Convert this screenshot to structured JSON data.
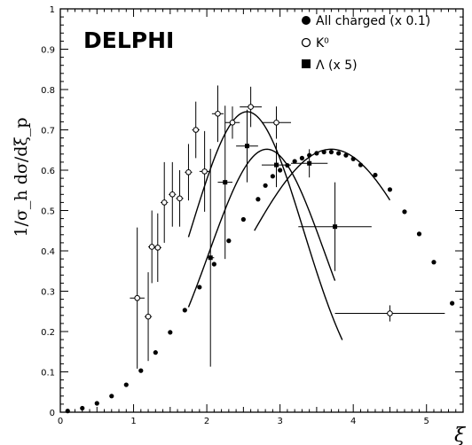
{
  "chart_data": {
    "type": "scatter",
    "experiment_label": "DELPHI",
    "ylabel": "1/σ_h dσ/dξ_p",
    "xlabel": "ξ_p",
    "xlim": [
      0,
      5.5
    ],
    "ylim": [
      0,
      1
    ],
    "x_ticks": [
      "0",
      "1",
      "2",
      "3",
      "4",
      "5"
    ],
    "y_ticks": [
      "0",
      "0.1",
      "0.2",
      "0.3",
      "0.4",
      "0.5",
      "0.6",
      "0.7",
      "0.8",
      "0.9",
      "1"
    ],
    "legend_position": "top-right",
    "series": [
      {
        "name": "All charged (x 0.1)",
        "marker": "filled-circle",
        "points": [
          {
            "x": 0.1,
            "y": 0.003
          },
          {
            "x": 0.3,
            "y": 0.01
          },
          {
            "x": 0.5,
            "y": 0.022
          },
          {
            "x": 0.7,
            "y": 0.04
          },
          {
            "x": 0.9,
            "y": 0.068
          },
          {
            "x": 1.1,
            "y": 0.103
          },
          {
            "x": 1.3,
            "y": 0.148
          },
          {
            "x": 1.5,
            "y": 0.198
          },
          {
            "x": 1.7,
            "y": 0.253
          },
          {
            "x": 1.9,
            "y": 0.31
          },
          {
            "x": 2.1,
            "y": 0.367
          },
          {
            "x": 2.3,
            "y": 0.425
          },
          {
            "x": 2.5,
            "y": 0.478
          },
          {
            "x": 2.7,
            "y": 0.528
          },
          {
            "x": 2.8,
            "y": 0.562
          },
          {
            "x": 2.9,
            "y": 0.585
          },
          {
            "x": 3.0,
            "y": 0.6
          },
          {
            "x": 3.1,
            "y": 0.612
          },
          {
            "x": 3.2,
            "y": 0.622
          },
          {
            "x": 3.3,
            "y": 0.63
          },
          {
            "x": 3.4,
            "y": 0.637
          },
          {
            "x": 3.5,
            "y": 0.642
          },
          {
            "x": 3.6,
            "y": 0.645
          },
          {
            "x": 3.7,
            "y": 0.645
          },
          {
            "x": 3.8,
            "y": 0.642
          },
          {
            "x": 3.9,
            "y": 0.637
          },
          {
            "x": 4.0,
            "y": 0.628
          },
          {
            "x": 4.1,
            "y": 0.613
          },
          {
            "x": 4.3,
            "y": 0.588
          },
          {
            "x": 4.5,
            "y": 0.552
          },
          {
            "x": 4.7,
            "y": 0.497
          },
          {
            "x": 4.9,
            "y": 0.442
          },
          {
            "x": 5.1,
            "y": 0.372
          },
          {
            "x": 5.35,
            "y": 0.27
          }
        ]
      },
      {
        "name": "K⁰",
        "marker": "open-circle",
        "points": [
          {
            "x": 1.05,
            "y": 0.283,
            "xerr": 0.1,
            "yerr": 0.175
          },
          {
            "x": 1.2,
            "y": 0.237,
            "xerr": 0.05,
            "yerr": 0.11
          },
          {
            "x": 1.25,
            "y": 0.41,
            "xerr": 0.05,
            "yerr": 0.09
          },
          {
            "x": 1.33,
            "y": 0.408,
            "xerr": 0.05,
            "yerr": 0.085
          },
          {
            "x": 1.42,
            "y": 0.52,
            "xerr": 0.05,
            "yerr": 0.1
          },
          {
            "x": 1.53,
            "y": 0.54,
            "xerr": 0.05,
            "yerr": 0.08
          },
          {
            "x": 1.63,
            "y": 0.53,
            "xerr": 0.05,
            "yerr": 0.07
          },
          {
            "x": 1.75,
            "y": 0.595,
            "xerr": 0.05,
            "yerr": 0.07
          },
          {
            "x": 1.85,
            "y": 0.7,
            "xerr": 0.05,
            "yerr": 0.07
          },
          {
            "x": 1.97,
            "y": 0.597,
            "xerr": 0.07,
            "yerr": 0.1
          },
          {
            "x": 2.15,
            "y": 0.74,
            "xerr": 0.08,
            "yerr": 0.07
          },
          {
            "x": 2.35,
            "y": 0.718,
            "xerr": 0.1,
            "yerr": 0.04
          },
          {
            "x": 2.6,
            "y": 0.757,
            "xerr": 0.15,
            "yerr": 0.05
          },
          {
            "x": 2.95,
            "y": 0.718,
            "xerr": 0.2,
            "yerr": 0.04
          },
          {
            "x": 4.5,
            "y": 0.245,
            "xerr": 0.75,
            "yerr": 0.02
          }
        ]
      },
      {
        "name": "Λ (x 5)",
        "marker": "filled-square",
        "points": [
          {
            "x": 2.05,
            "y": 0.383,
            "xerr": 0.05,
            "yerr": 0.27
          },
          {
            "x": 2.25,
            "y": 0.57,
            "xerr": 0.1,
            "yerr": 0.19
          },
          {
            "x": 2.55,
            "y": 0.66,
            "xerr": 0.15,
            "yerr": 0.09
          },
          {
            "x": 2.95,
            "y": 0.613,
            "xerr": 0.2,
            "yerr": 0.055
          },
          {
            "x": 3.4,
            "y": 0.617,
            "xerr": 0.25,
            "yerr": 0.035
          },
          {
            "x": 3.75,
            "y": 0.46,
            "xerr": 0.5,
            "yerr": 0.11
          }
        ]
      }
    ],
    "fit_curves": [
      {
        "kind": "gaussian",
        "peak_x": 2.55,
        "peak_y": 0.745,
        "width": 0.77,
        "x_range": [
          1.75,
          3.85
        ]
      },
      {
        "kind": "gaussian",
        "peak_x": 2.82,
        "peak_y": 0.652,
        "width": 0.79,
        "x_range": [
          1.75,
          3.75
        ]
      },
      {
        "kind": "gaussian",
        "peak_x": 3.7,
        "peak_y": 0.652,
        "width": 1.22,
        "x_range": [
          2.65,
          4.5
        ]
      }
    ]
  }
}
